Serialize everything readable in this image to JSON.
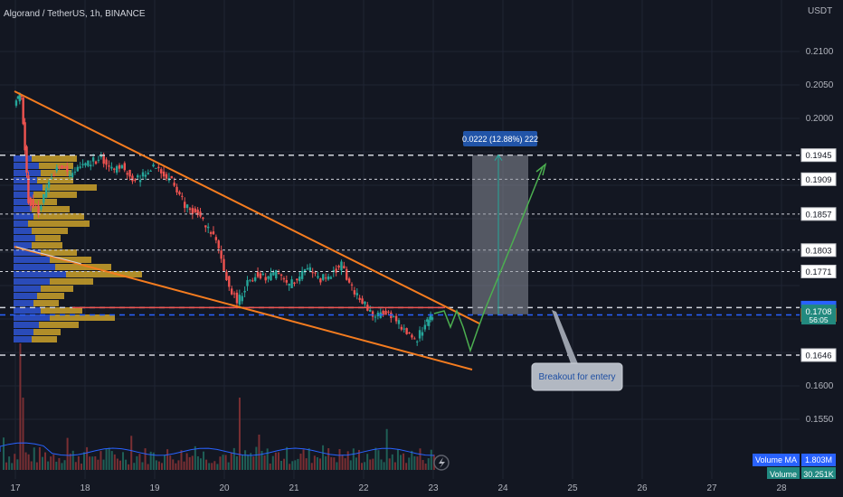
{
  "header": {
    "title": "Algorand / TetherUS, 1h, BINANCE",
    "currency": "USDT"
  },
  "colors": {
    "background": "#131722",
    "bull": "#26a69a",
    "bear": "#ef5350",
    "orange_line": "#f57c1f",
    "profile_blue": "#2962ff",
    "profile_gold": "#c29a2a",
    "arrow_green": "#4caf50"
  },
  "chart_data": {
    "type": "line",
    "symbol": "ALGOUSDT",
    "timeframe": "1h",
    "y_axis_ticks": [
      "0.2100",
      "0.2050",
      "0.2000",
      "0.1600",
      "0.1550"
    ],
    "x_axis_ticks": [
      "17",
      "18",
      "19",
      "20",
      "21",
      "22",
      "23",
      "24",
      "25",
      "26",
      "27",
      "28"
    ],
    "y_range": [
      0.15,
      0.213
    ],
    "approx_close_series": {
      "days": [
        17.0,
        17.1,
        17.2,
        17.35,
        17.5,
        17.65,
        17.8,
        17.95,
        18.1,
        18.25,
        18.4,
        18.55,
        18.7,
        18.85,
        19.0,
        19.15,
        19.3,
        19.45,
        19.6,
        19.75,
        19.9,
        20.05,
        20.2,
        20.35,
        20.5,
        20.65,
        20.8,
        20.95,
        21.1,
        21.25,
        21.4,
        21.55,
        21.7,
        21.85,
        22.0,
        22.15,
        22.3,
        22.45,
        22.6,
        22.75,
        22.9,
        23.0
      ],
      "price": [
        0.2025,
        0.2037,
        0.1878,
        0.186,
        0.1905,
        0.193,
        0.1915,
        0.1928,
        0.1935,
        0.194,
        0.1922,
        0.193,
        0.1905,
        0.1915,
        0.193,
        0.1915,
        0.1903,
        0.187,
        0.186,
        0.184,
        0.1818,
        0.176,
        0.1725,
        0.1755,
        0.1768,
        0.1762,
        0.177,
        0.175,
        0.1765,
        0.1775,
        0.176,
        0.1768,
        0.178,
        0.1745,
        0.1725,
        0.1705,
        0.171,
        0.17,
        0.1685,
        0.1665,
        0.169,
        0.1708
      ]
    },
    "price_levels": [
      {
        "label": "0.1945",
        "style": "dashed-white"
      },
      {
        "label": "0.1909",
        "style": "dotted-white"
      },
      {
        "label": "0.1857",
        "style": "dotted-white"
      },
      {
        "label": "0.1803",
        "style": "dotted-white"
      },
      {
        "label": "0.1771",
        "style": "dotted-white"
      },
      {
        "label": "0.1717",
        "style": "dashed-white"
      },
      {
        "label": "0.1706",
        "style": "dashed-blue"
      },
      {
        "label": "0.1646",
        "style": "dashed-white"
      }
    ],
    "current_price": {
      "label": "0.1708",
      "countdown": "56:05"
    },
    "measure_box": {
      "label": "0.0222 (12.88%) 222"
    },
    "annotation": {
      "text": "Breakout for entery"
    },
    "volume_ma": {
      "label": "Volume MA",
      "value": "1.803M"
    },
    "volume": {
      "label": "Volume",
      "value": "30.251K"
    }
  }
}
